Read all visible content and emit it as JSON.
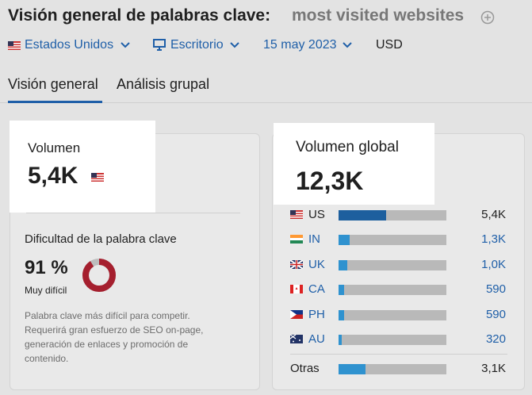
{
  "header": {
    "title": "Visión general de palabras clave:",
    "keyword": "most visited websites"
  },
  "filters": {
    "database": "Estados Unidos",
    "device": "Escritorio",
    "date": "15 may 2023",
    "currency": "USD"
  },
  "tabs": [
    "Visión general",
    "Análisis grupal"
  ],
  "volume": {
    "label": "Volumen",
    "value": "5,4K"
  },
  "difficulty": {
    "label": "Dificultad de la palabra clave",
    "value": {
      "value": 91,
      "label": "91 %"
    },
    "level": "Muy difícil",
    "description": [
      "Palabra clave más difícil para competir.",
      "Requerirá gran esfuerzo de SEO on-page,",
      "generación de enlaces y promoción de",
      "contenido."
    ]
  },
  "global_volume": {
    "label": "Volumen global",
    "total": {
      "value": 12300,
      "label": "12,3K"
    },
    "countries": [
      {
        "code": "US",
        "value": 5400,
        "label": "5,4K"
      },
      {
        "code": "IN",
        "value": 1300,
        "label": "1,3K"
      },
      {
        "code": "UK",
        "value": 1000,
        "label": "1,0K"
      },
      {
        "code": "CA",
        "value": 590,
        "label": "590"
      },
      {
        "code": "PH",
        "value": 590,
        "label": "590"
      },
      {
        "code": "AU",
        "value": 320,
        "label": "320"
      }
    ],
    "other": {
      "name": "Otras",
      "value": 3100,
      "label": "3,1K"
    }
  }
}
